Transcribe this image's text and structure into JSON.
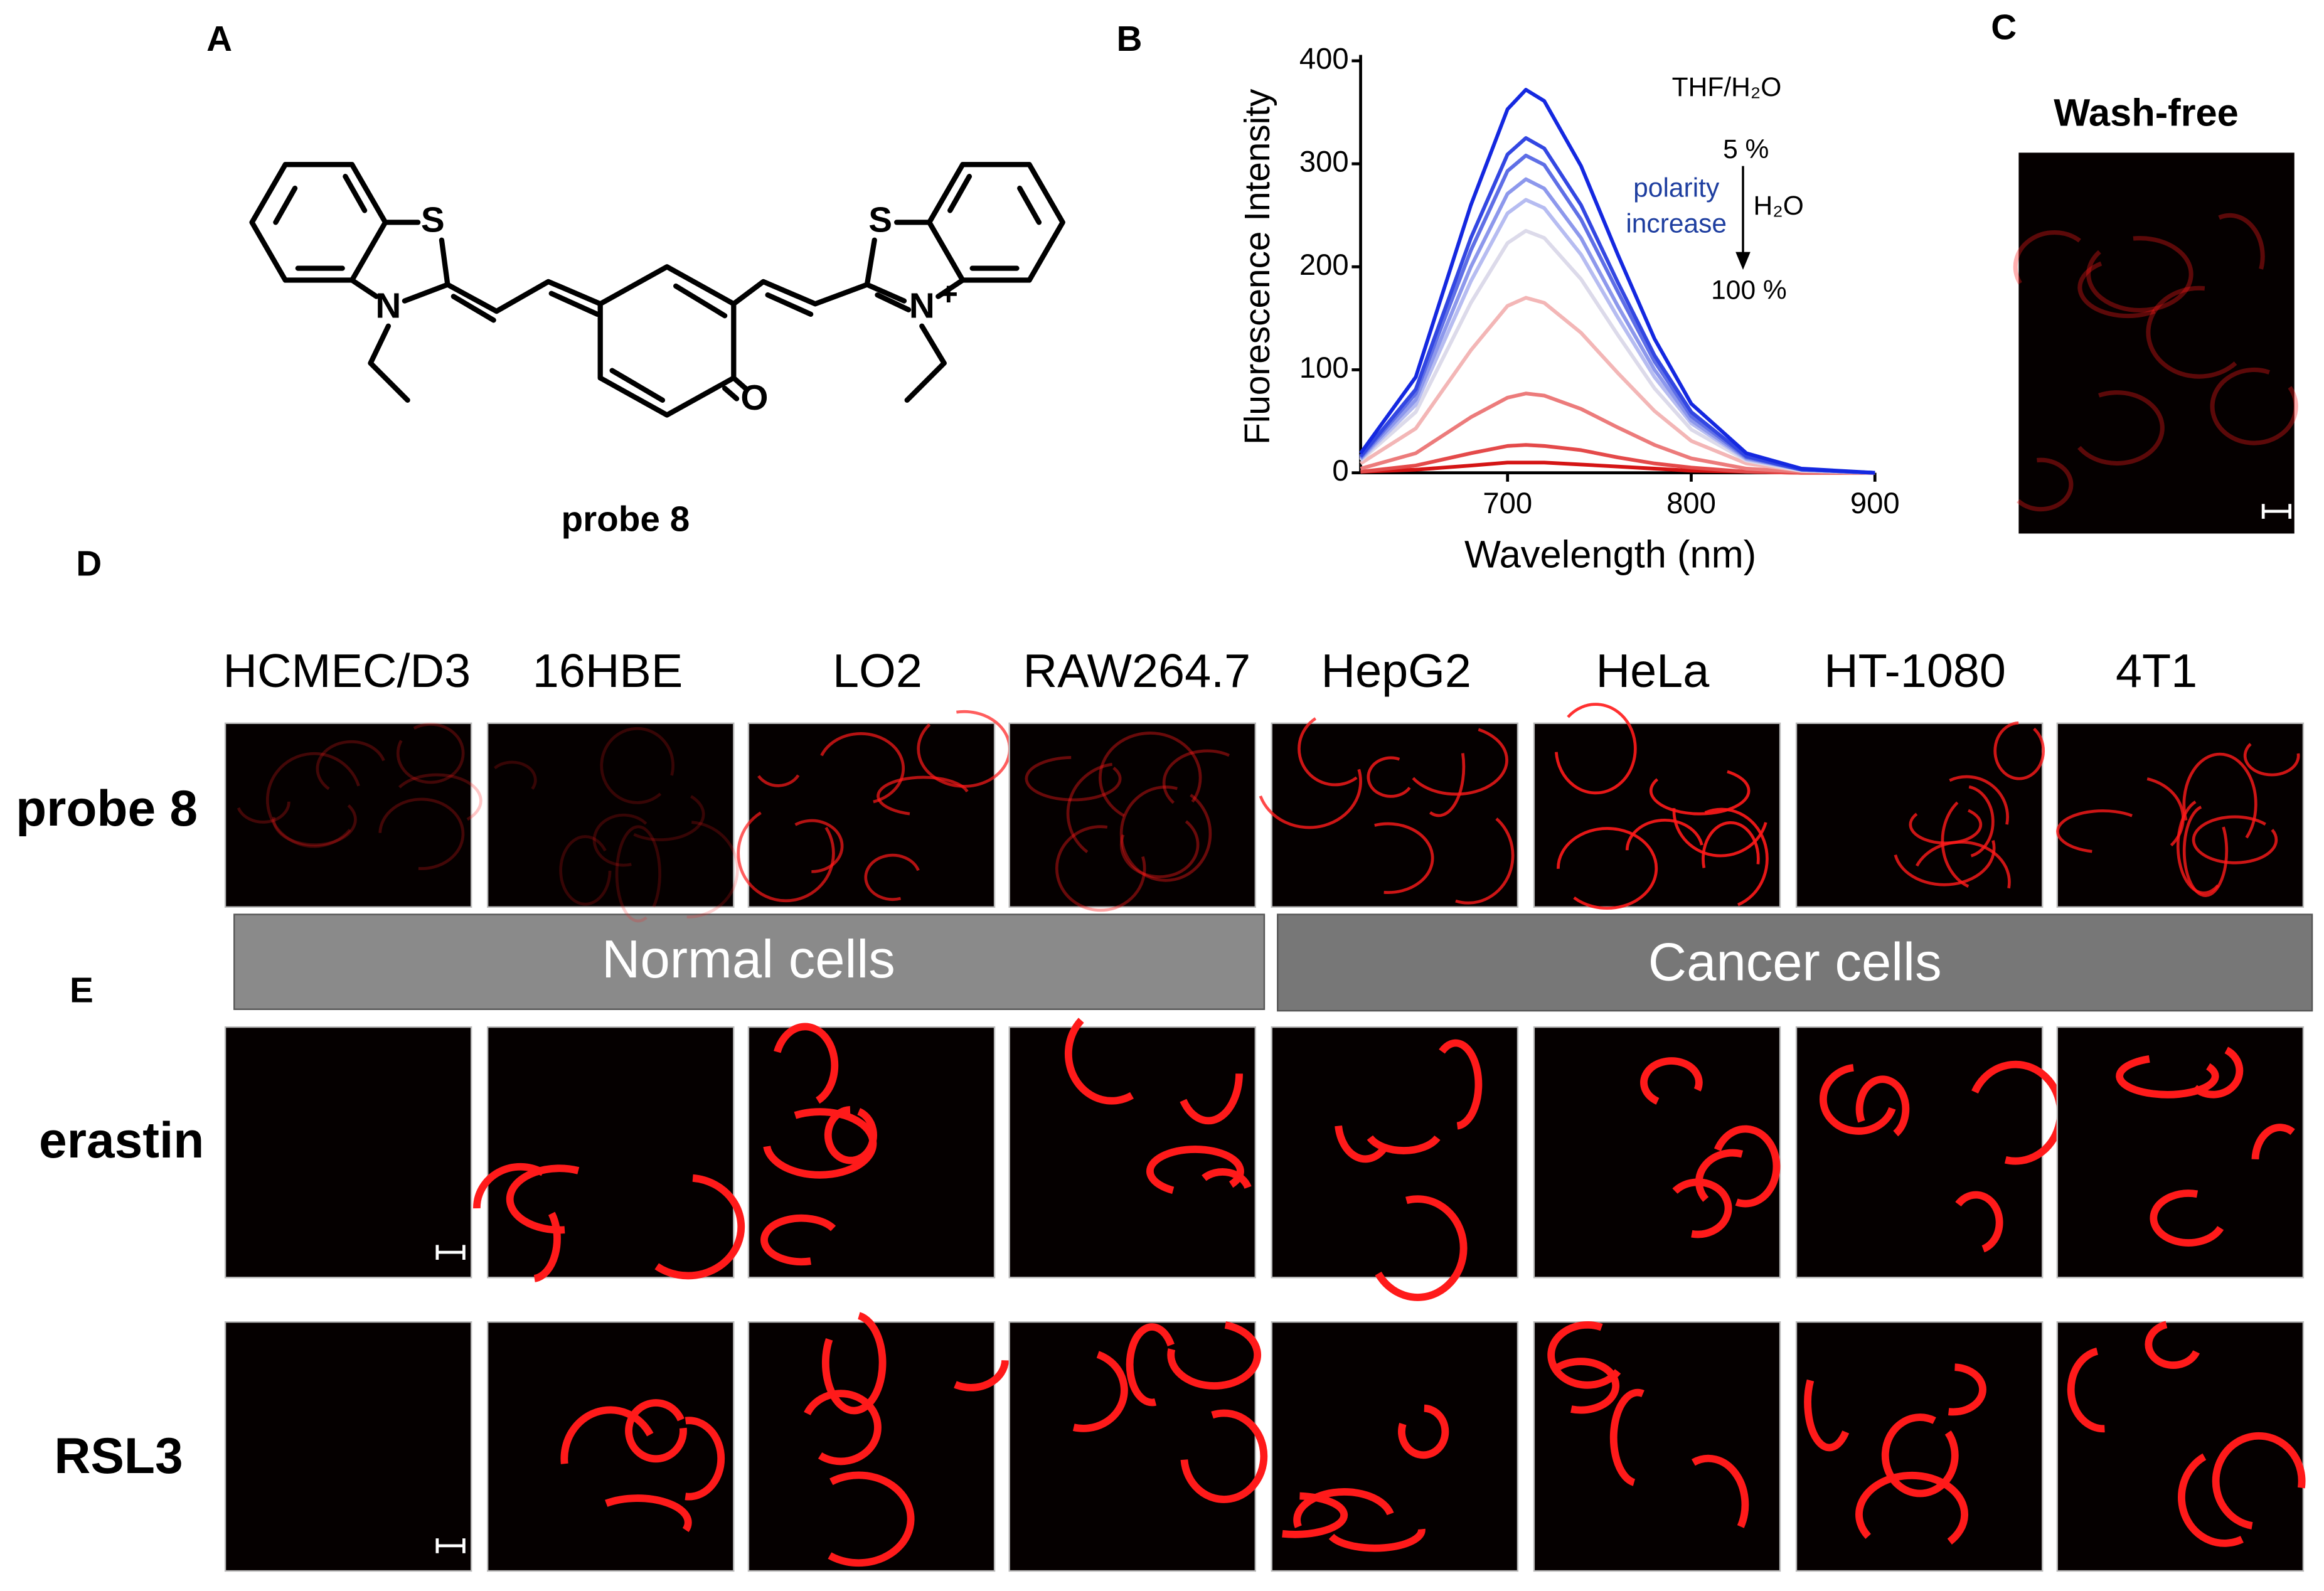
{
  "panels": [
    "A",
    "B",
    "C",
    "D",
    "E"
  ],
  "structure": {
    "atoms": [
      "S",
      "N",
      "S",
      "N",
      "+",
      "O"
    ],
    "name": "probe 8"
  },
  "chart_data": {
    "type": "line",
    "x": [
      620,
      650,
      680,
      700,
      710,
      720,
      740,
      760,
      780,
      800,
      830,
      860,
      900
    ],
    "series": [
      {
        "color": "#1428e0",
        "values": [
          19,
          93,
          260,
          353,
          372,
          361,
          298,
          212,
          130,
          67,
          19,
          4,
          0
        ]
      },
      {
        "color": "#3347e2",
        "values": [
          16,
          81,
          228,
          309,
          325,
          315,
          260,
          185,
          114,
          59,
          16,
          3,
          0
        ]
      },
      {
        "color": "#5f6fe6",
        "values": [
          15,
          77,
          216,
          293,
          308,
          299,
          246,
          176,
          108,
          55,
          15,
          3,
          0
        ]
      },
      {
        "color": "#8d98ec",
        "values": [
          14,
          71,
          200,
          271,
          285,
          276,
          228,
          162,
          100,
          51,
          14,
          3,
          0
        ]
      },
      {
        "color": "#b6bcf1",
        "values": [
          13,
          66,
          186,
          252,
          265,
          257,
          212,
          151,
          93,
          48,
          13,
          3,
          0
        ]
      },
      {
        "color": "#dcdaea",
        "values": [
          12,
          59,
          165,
          223,
          235,
          228,
          188,
          134,
          82,
          42,
          12,
          2,
          0
        ]
      },
      {
        "color": "#f3b6b6",
        "values": [
          9,
          43,
          119,
          162,
          170,
          165,
          136,
          97,
          60,
          31,
          9,
          2,
          0
        ]
      },
      {
        "color": "#ec7b7b",
        "values": [
          4,
          19,
          54,
          73,
          77,
          75,
          62,
          44,
          27,
          14,
          4,
          1,
          0
        ]
      },
      {
        "color": "#e44a4a",
        "values": [
          1,
          7,
          19,
          26,
          27,
          26,
          22,
          15,
          9,
          5,
          1,
          0,
          0
        ]
      },
      {
        "color": "#d41414",
        "values": [
          1,
          3,
          7,
          10,
          10,
          10,
          8,
          6,
          4,
          2,
          1,
          0,
          0
        ]
      }
    ],
    "xlim": [
      620,
      900
    ],
    "xticks": [
      700,
      800,
      900
    ],
    "ylim": [
      0,
      400
    ],
    "yticks": [
      0,
      100,
      200,
      300,
      400
    ],
    "xlabel": "Wavelength (nm)",
    "ylabel": "Fluorescence Intensity",
    "annotations": [
      "THF/H₂O",
      "5 %",
      "H₂O",
      "100 %",
      "polarity",
      "increase"
    ]
  },
  "wash_free": {
    "title": "Wash-free"
  },
  "columns": [
    "HCMEC/D3",
    "16HBE",
    "LO2",
    "RAW264.7",
    "HepG2",
    "HeLa",
    "HT-1080",
    "4T1"
  ],
  "rows": [
    "probe 8",
    "erastin",
    "RSL3"
  ],
  "groups": [
    "Normal cells",
    "Cancer cells"
  ]
}
